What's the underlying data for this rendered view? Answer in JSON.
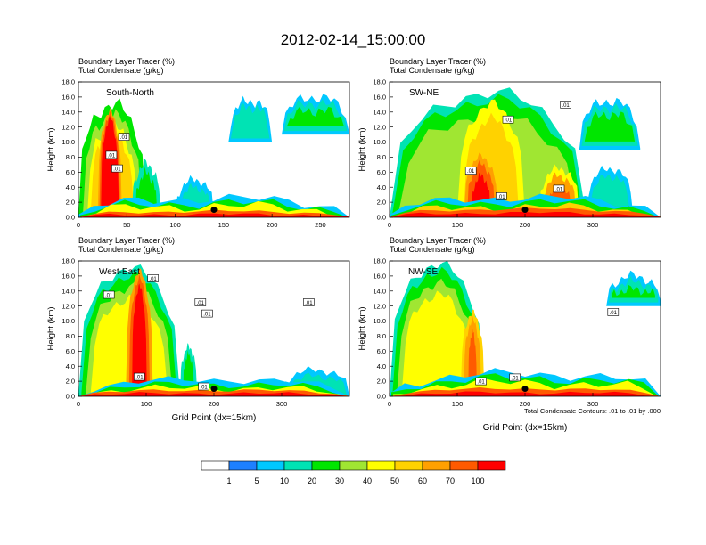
{
  "figure": {
    "title": "2012-02-14_15:00:00",
    "footnote": "Total Condensate Contours: .01 to .01 by .000"
  },
  "colors": {
    "scale": [
      "#ffffff",
      "#1e80ff",
      "#00c8ff",
      "#00e3b4",
      "#00e600",
      "#a0e632",
      "#ffff00",
      "#ffd200",
      "#ffa000",
      "#ff5a00",
      "#ff0000"
    ],
    "contour": "#000000"
  },
  "colorbar": {
    "labels": [
      "1",
      "5",
      "10",
      "20",
      "30",
      "40",
      "50",
      "60",
      "70",
      "100"
    ]
  },
  "chart_data": [
    {
      "type": "heatmap",
      "panel": "top-left",
      "header_line1": "Boundary Layer Tracer   (%)",
      "header_line2": "Total Condensate   (g/kg)",
      "section_label": "South-North",
      "ylabel": "Height (km)",
      "xlabel": "",
      "xlim": [
        0,
        280
      ],
      "ylim": [
        0,
        18
      ],
      "xticks": [
        0,
        50,
        100,
        150,
        200,
        250
      ],
      "yticks": [
        "0.0",
        "2.0",
        "4.0",
        "6.0",
        "8.0",
        "10.0",
        "12.0",
        "14.0",
        "16.0",
        "18.0"
      ],
      "marker": {
        "x": 140,
        "y": 1.0
      },
      "contour_labels": [
        {
          "text": ".01",
          "x": 47,
          "y": 10.7
        },
        {
          "text": ".01",
          "x": 34,
          "y": 8.3
        },
        {
          "text": ".01",
          "x": 40,
          "y": 6.5
        }
      ],
      "regions": [
        {
          "x0": 0,
          "x1": 70,
          "top": 15.0,
          "wobble": 1.0,
          "layers": [
            [
              0,
              4
            ],
            [
              1.5,
              5
            ],
            [
              3,
              6
            ],
            [
              4,
              7
            ]
          ]
        },
        {
          "x0": 20,
          "x1": 45,
          "top": 14.0,
          "wobble": 0.6,
          "layers": [
            [
              0,
              8
            ],
            [
              0.5,
              9
            ],
            [
              1,
              10
            ]
          ]
        },
        {
          "x0": 55,
          "x1": 85,
          "top": 7.0,
          "wobble": 0.8,
          "layers": [
            [
              0,
              3
            ],
            [
              1.2,
              4
            ]
          ]
        },
        {
          "x0": 100,
          "x1": 140,
          "top": 5.0,
          "wobble": 0.6,
          "layers": [
            [
              0,
              2
            ],
            [
              1,
              3
            ]
          ]
        },
        {
          "x0": 155,
          "x1": 200,
          "top": 15.5,
          "wobble": 0.8,
          "bottom": 10.0,
          "layers": [
            [
              0,
              2
            ],
            [
              0.8,
              3
            ]
          ]
        },
        {
          "x0": 210,
          "x1": 280,
          "top": 16.0,
          "wobble": 0.8,
          "bottom": 11.0,
          "layers": [
            [
              0,
              2
            ],
            [
              0.8,
              3
            ],
            [
              1.8,
              4
            ]
          ]
        },
        {
          "x0": 0,
          "x1": 280,
          "top": 2.5,
          "wobble": 0.7,
          "layers": [
            [
              0,
              2
            ],
            [
              0.6,
              4
            ],
            [
              1.0,
              6
            ]
          ]
        },
        {
          "x0": 0,
          "x1": 280,
          "top": 0.8,
          "wobble": 0.2,
          "layers": [
            [
              0,
              9
            ],
            [
              0.4,
              10
            ]
          ]
        }
      ]
    },
    {
      "type": "heatmap",
      "panel": "top-right",
      "header_line1": "Boundary Layer Tracer   (%)",
      "header_line2": "Total Condensate   (g/kg)",
      "section_label": "SW-NE",
      "ylabel": "Height (km)",
      "xlabel": "",
      "xlim": [
        0,
        400
      ],
      "ylim": [
        0,
        18
      ],
      "xticks": [
        0,
        100,
        200,
        300
      ],
      "yticks": [
        "0.0",
        "2.0",
        "4.0",
        "6.0",
        "8.0",
        "10.0",
        "12.0",
        "14.0",
        "16.0",
        "18.0"
      ],
      "marker": {
        "x": 200,
        "y": 1.0
      },
      "contour_labels": [
        {
          "text": ".01",
          "x": 260,
          "y": 15.0
        },
        {
          "text": ".01",
          "x": 175,
          "y": 13.0
        },
        {
          "text": ".01",
          "x": 120,
          "y": 6.2
        },
        {
          "text": ".01",
          "x": 165,
          "y": 2.8
        },
        {
          "text": ".01",
          "x": 250,
          "y": 3.8
        }
      ],
      "regions": [
        {
          "x0": 0,
          "x1": 290,
          "top": 16.5,
          "wobble": 1.0,
          "layers": [
            [
              0,
              3
            ],
            [
              1,
              4
            ],
            [
              3,
              5
            ]
          ]
        },
        {
          "x0": 100,
          "x1": 200,
          "top": 15.0,
          "wobble": 0.8,
          "layers": [
            [
              0,
              6
            ],
            [
              2,
              7
            ]
          ]
        },
        {
          "x0": 110,
          "x1": 160,
          "top": 8.0,
          "wobble": 0.6,
          "layers": [
            [
              0,
              8
            ],
            [
              1,
              9
            ],
            [
              2.5,
              10
            ]
          ]
        },
        {
          "x0": 220,
          "x1": 280,
          "top": 6.5,
          "wobble": 0.6,
          "layers": [
            [
              0,
              6
            ],
            [
              1,
              8
            ],
            [
              2.5,
              9
            ]
          ]
        },
        {
          "x0": 290,
          "x1": 360,
          "top": 6.5,
          "wobble": 0.6,
          "layers": [
            [
              0,
              2
            ],
            [
              1,
              3
            ]
          ]
        },
        {
          "x0": 280,
          "x1": 370,
          "top": 15.5,
          "wobble": 0.8,
          "bottom": 9.0,
          "layers": [
            [
              0,
              2
            ],
            [
              0.8,
              3
            ],
            [
              1.8,
              4
            ]
          ]
        },
        {
          "x0": 0,
          "x1": 400,
          "top": 2.6,
          "wobble": 0.6,
          "layers": [
            [
              0,
              2
            ],
            [
              0.6,
              4
            ],
            [
              1.2,
              7
            ]
          ]
        },
        {
          "x0": 0,
          "x1": 400,
          "top": 1.1,
          "wobble": 0.2,
          "layers": [
            [
              0,
              9
            ],
            [
              0.5,
              10
            ]
          ]
        }
      ]
    },
    {
      "type": "heatmap",
      "panel": "bottom-left",
      "header_line1": "Boundary Layer Tracer   (%)",
      "header_line2": "Total Condensate   (g/kg)",
      "section_label": "West-East",
      "ylabel": "Height (km)",
      "xlabel": "Grid Point (dx=15km)",
      "xlim": [
        0,
        400
      ],
      "ylim": [
        0,
        18
      ],
      "xticks": [
        0,
        100,
        200,
        300
      ],
      "yticks": [
        "0.0",
        "2.0",
        "4.0",
        "6.0",
        "8.0",
        "10.0",
        "12.0",
        "14.0",
        "16.0",
        "18.0"
      ],
      "marker": {
        "x": 200,
        "y": 1.0
      },
      "contour_labels": [
        {
          "text": ".01",
          "x": 110,
          "y": 15.7
        },
        {
          "text": ".01",
          "x": 45,
          "y": 13.5
        },
        {
          "text": ".01",
          "x": 180,
          "y": 12.5
        },
        {
          "text": ".01",
          "x": 190,
          "y": 11.0
        },
        {
          "text": ".01",
          "x": 340,
          "y": 12.5
        },
        {
          "text": ".01",
          "x": 90,
          "y": 2.6
        },
        {
          "text": ".01",
          "x": 185,
          "y": 1.3
        }
      ],
      "regions": [
        {
          "x0": 0,
          "x1": 150,
          "top": 17.0,
          "wobble": 0.8,
          "layers": [
            [
              0,
              3
            ],
            [
              1,
              4
            ],
            [
              2.5,
              5
            ],
            [
              4,
              6
            ]
          ]
        },
        {
          "x0": 70,
          "x1": 110,
          "top": 16.5,
          "wobble": 0.6,
          "layers": [
            [
              0,
              8
            ],
            [
              1,
              9
            ],
            [
              2,
              10
            ]
          ]
        },
        {
          "x0": 150,
          "x1": 175,
          "top": 6.5,
          "wobble": 0.6,
          "layers": [
            [
              0,
              3
            ],
            [
              1,
              4
            ]
          ]
        },
        {
          "x0": 300,
          "x1": 400,
          "top": 3.5,
          "wobble": 0.5,
          "layers": [
            [
              0,
              2
            ],
            [
              0.8,
              3
            ]
          ]
        },
        {
          "x0": 0,
          "x1": 400,
          "top": 2.2,
          "wobble": 0.5,
          "layers": [
            [
              0,
              2
            ],
            [
              0.6,
              4
            ],
            [
              1.1,
              6
            ]
          ]
        },
        {
          "x0": 0,
          "x1": 400,
          "top": 0.8,
          "wobble": 0.2,
          "layers": [
            [
              0,
              9
            ],
            [
              0.4,
              10
            ]
          ]
        }
      ]
    },
    {
      "type": "heatmap",
      "panel": "bottom-right",
      "header_line1": "Boundary Layer Tracer   (%)",
      "header_line2": "Total Condensate   (g/kg)",
      "section_label": "NW-SE",
      "ylabel": "Height (km)",
      "xlabel": "Grid Point (dx=15km)",
      "xlim": [
        0,
        400
      ],
      "ylim": [
        0,
        18
      ],
      "xticks": [
        0,
        100,
        200,
        300
      ],
      "yticks": [
        "0.0",
        "2.0",
        "4.0",
        "6.0",
        "8.0",
        "10.0",
        "12.0",
        "14.0",
        "16.0",
        "18.0"
      ],
      "marker": {
        "x": 200,
        "y": 1.0
      },
      "contour_labels": [
        {
          "text": ".01",
          "x": 135,
          "y": 2.0
        },
        {
          "text": ".01",
          "x": 185,
          "y": 2.5
        },
        {
          "text": ".01",
          "x": 330,
          "y": 11.2
        }
      ],
      "regions": [
        {
          "x0": 0,
          "x1": 140,
          "top": 17.5,
          "wobble": 0.8,
          "layers": [
            [
              0,
              3
            ],
            [
              1,
              4
            ],
            [
              2.5,
              5
            ],
            [
              4,
              6
            ]
          ]
        },
        {
          "x0": 105,
          "x1": 140,
          "top": 11.0,
          "wobble": 0.6,
          "layers": [
            [
              0,
              7
            ],
            [
              1,
              8
            ],
            [
              2.5,
              9
            ]
          ]
        },
        {
          "x0": 320,
          "x1": 400,
          "top": 16.0,
          "wobble": 0.7,
          "bottom": 12.0,
          "layers": [
            [
              0,
              2
            ],
            [
              0.8,
              3
            ],
            [
              1.8,
              4
            ]
          ]
        },
        {
          "x0": 0,
          "x1": 400,
          "top": 3.0,
          "wobble": 0.7,
          "layers": [
            [
              0,
              2
            ],
            [
              0.6,
              4
            ],
            [
              1.2,
              6
            ]
          ]
        },
        {
          "x0": 0,
          "x1": 400,
          "top": 1.0,
          "wobble": 0.2,
          "layers": [
            [
              0,
              9
            ],
            [
              0.5,
              10
            ]
          ]
        }
      ]
    }
  ]
}
